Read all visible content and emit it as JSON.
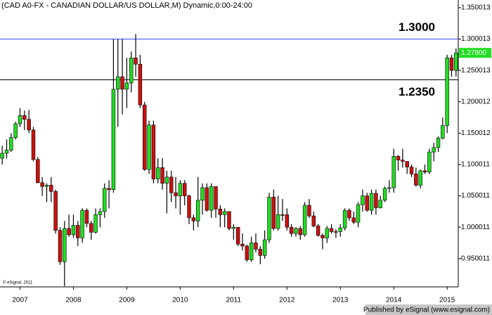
{
  "chart_data": {
    "type": "candlestick",
    "title": "(CAD A0-FX - CANADIAN DOLLAR/US DOLLAR,M) Dynamic,0:00-24:00",
    "copyright": "© eSignal, 2011",
    "footer": "Published by eSignal (www.esignal.com)",
    "categories": [
      null,
      null,
      null,
      null,
      "2007",
      null,
      null,
      null,
      null,
      null,
      null,
      null,
      null,
      null,
      null,
      null,
      "2008",
      null,
      null,
      null,
      null,
      null,
      null,
      null,
      null,
      null,
      null,
      null,
      "2009",
      null,
      null,
      null,
      null,
      null,
      null,
      null,
      null,
      null,
      null,
      null,
      "2010",
      null,
      null,
      null,
      null,
      null,
      null,
      null,
      null,
      null,
      null,
      null,
      "2011",
      null,
      null,
      null,
      null,
      null,
      null,
      null,
      null,
      null,
      null,
      null,
      "2012",
      null,
      null,
      null,
      null,
      null,
      null,
      null,
      null,
      null,
      null,
      null,
      "2013",
      null,
      null,
      null,
      null,
      null,
      null,
      null,
      null,
      null,
      null,
      null,
      "2014",
      null,
      null,
      null,
      null,
      null,
      null,
      null,
      null,
      null,
      null,
      null,
      "2015",
      null,
      null
    ],
    "open": [
      1.11,
      1.118,
      1.123,
      1.143,
      1.165,
      1.178,
      1.172,
      1.155,
      1.108,
      1.071,
      1.065,
      1.067,
      1.057,
      0.995,
      0.945,
      0.998,
      0.988,
      1.003,
      0.983,
      1.027,
      1.006,
      0.992,
      1.02,
      1.025,
      1.062,
      1.06,
      1.22,
      1.24,
      1.22,
      1.23,
      1.27,
      1.26,
      1.195,
      1.092,
      1.163,
      1.077,
      1.095,
      1.07,
      1.08,
      1.055,
      1.05,
      1.07,
      1.05,
      1.015,
      1.01,
      1.043,
      1.063,
      1.027,
      1.065,
      1.029,
      1.02,
      1.025,
      0.998,
      1.0,
      0.973,
      0.97,
      0.948,
      0.975,
      0.965,
      0.955,
      0.98,
      1.048,
      0.998,
      1.02,
      1.02,
      1.0,
      0.99,
      0.998,
      0.988,
      1.035,
      1.018,
      1.002,
      0.987,
      0.983,
      0.998,
      0.993,
      0.993,
      0.999,
      1.027,
      1.015,
      1.008,
      1.036,
      1.05,
      1.027,
      1.054,
      1.031,
      1.043,
      1.062,
      1.063,
      1.113,
      1.107,
      1.105,
      1.096,
      1.085,
      1.067,
      1.09,
      1.088,
      1.12,
      1.127,
      1.142,
      1.162,
      1.27,
      1.25
    ],
    "high": [
      1.13,
      1.14,
      1.15,
      1.168,
      1.19,
      1.186,
      1.187,
      1.16,
      1.112,
      1.08,
      1.07,
      1.08,
      1.06,
      1.0,
      1.01,
      1.02,
      1.02,
      1.01,
      1.03,
      1.03,
      1.01,
      1.03,
      1.03,
      1.07,
      1.075,
      1.3,
      1.3,
      1.3,
      1.27,
      1.28,
      1.308,
      1.275,
      1.2,
      1.17,
      1.17,
      1.11,
      1.11,
      1.09,
      1.09,
      1.08,
      1.075,
      1.075,
      1.052,
      1.02,
      1.08,
      1.07,
      1.07,
      1.07,
      1.065,
      1.035,
      1.03,
      1.025,
      1.005,
      1.0,
      0.99,
      0.972,
      0.985,
      0.99,
      0.97,
      0.995,
      1.055,
      1.06,
      1.05,
      1.045,
      1.03,
      1.005,
      1.0,
      1.002,
      1.04,
      1.045,
      1.025,
      1.005,
      0.99,
      1.002,
      1.005,
      0.997,
      1.005,
      1.03,
      1.03,
      1.025,
      1.04,
      1.06,
      1.055,
      1.06,
      1.06,
      1.05,
      1.065,
      1.075,
      1.125,
      1.115,
      1.125,
      1.105,
      1.1,
      1.095,
      1.092,
      1.1,
      1.125,
      1.135,
      1.145,
      1.175,
      1.275,
      1.275,
      1.285
    ],
    "low": [
      1.1,
      1.11,
      1.12,
      1.14,
      1.16,
      1.155,
      1.15,
      1.105,
      1.07,
      1.05,
      1.04,
      1.04,
      0.99,
      0.94,
      0.906,
      0.985,
      0.983,
      0.97,
      0.975,
      1.0,
      0.98,
      0.99,
      1.0,
      1.015,
      1.03,
      1.055,
      1.16,
      1.18,
      1.19,
      1.215,
      1.24,
      1.19,
      1.09,
      1.085,
      1.07,
      1.07,
      1.06,
      1.022,
      1.04,
      1.03,
      1.02,
      1.035,
      1.005,
      0.995,
      1.0,
      1.02,
      1.025,
      1.015,
      1.015,
      1.0,
      1.0,
      0.995,
      0.98,
      0.97,
      0.963,
      0.945,
      0.945,
      0.96,
      0.941,
      0.95,
      0.975,
      0.995,
      0.995,
      1.01,
      0.995,
      0.985,
      0.985,
      0.98,
      0.985,
      1.015,
      1.0,
      0.985,
      0.965,
      0.975,
      0.99,
      0.983,
      0.985,
      0.995,
      1.01,
      1.005,
      1.0,
      1.025,
      1.025,
      1.02,
      1.02,
      1.03,
      1.04,
      1.055,
      1.055,
      1.09,
      1.095,
      1.085,
      1.08,
      1.065,
      1.062,
      1.085,
      1.085,
      1.105,
      1.12,
      1.14,
      1.15,
      1.24,
      1.24
    ],
    "close": [
      1.118,
      1.123,
      1.143,
      1.165,
      1.178,
      1.172,
      1.155,
      1.108,
      1.071,
      1.065,
      1.067,
      1.057,
      0.995,
      0.945,
      0.998,
      0.988,
      1.003,
      0.983,
      1.027,
      1.006,
      0.992,
      1.02,
      1.025,
      1.062,
      1.06,
      1.22,
      1.24,
      1.22,
      1.23,
      1.27,
      1.26,
      1.195,
      1.092,
      1.163,
      1.077,
      1.095,
      1.07,
      1.08,
      1.055,
      1.05,
      1.07,
      1.05,
      1.015,
      1.01,
      1.043,
      1.063,
      1.027,
      1.065,
      1.029,
      1.02,
      1.025,
      0.998,
      1.0,
      0.973,
      0.97,
      0.948,
      0.975,
      0.965,
      0.955,
      0.98,
      1.048,
      0.998,
      1.02,
      1.02,
      1.0,
      0.99,
      0.998,
      0.988,
      1.035,
      1.018,
      1.002,
      0.987,
      0.983,
      0.998,
      0.993,
      0.993,
      0.999,
      1.027,
      1.015,
      1.008,
      1.036,
      1.05,
      1.027,
      1.054,
      1.031,
      1.043,
      1.062,
      1.063,
      1.113,
      1.107,
      1.105,
      1.096,
      1.085,
      1.067,
      1.09,
      1.088,
      1.12,
      1.127,
      1.142,
      1.162,
      1.27,
      1.25,
      1.278
    ],
    "up_color": "#22dd22",
    "down_color": "#cc1111",
    "ylim": [
      0.9049,
      1.3623
    ],
    "yticks": [
      1.350013,
      1.300013,
      1.250013,
      1.200012,
      1.150012,
      1.100011,
      1.050011,
      1.000011,
      0.950011
    ],
    "levels": [
      {
        "value": 1.3,
        "label": "1.3000",
        "color": "#3344ee"
      },
      {
        "value": 1.235,
        "label": "1.2350",
        "color": "#000000"
      }
    ],
    "last_price": {
      "value": 1.278,
      "label": "1.27800",
      "color": "#22dd22"
    }
  }
}
